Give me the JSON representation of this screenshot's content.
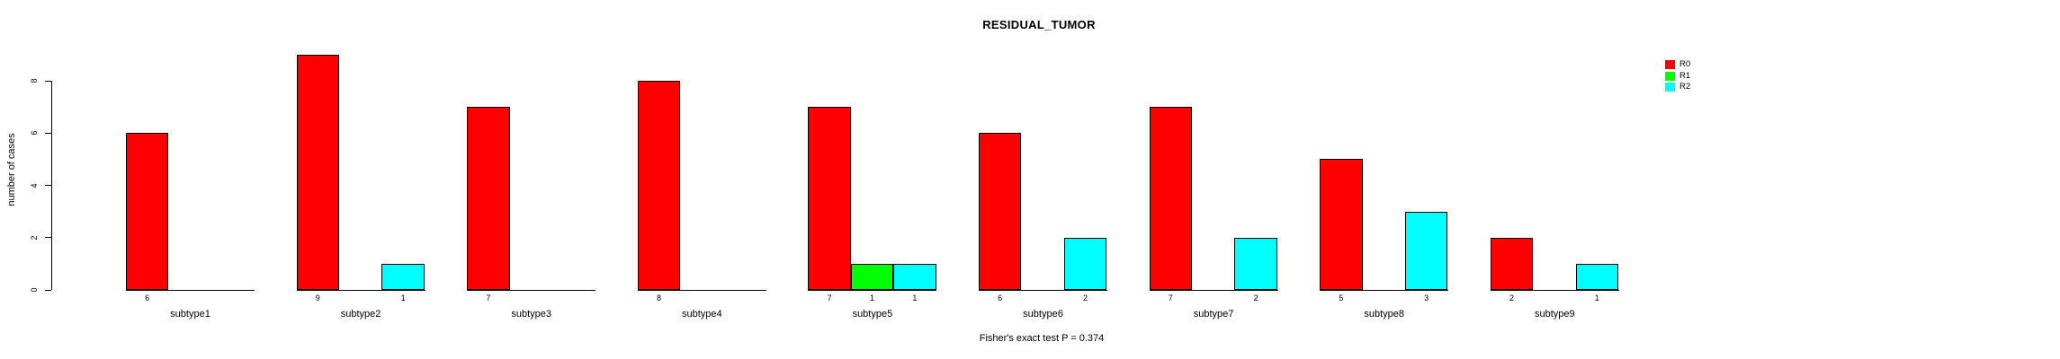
{
  "chart_data": {
    "type": "bar",
    "grouped": true,
    "title": "RESIDUAL_TUMOR",
    "xlabel": "",
    "ylabel": "number of cases",
    "annotation": "Fisher's exact test P = 0.374",
    "categories": [
      "subtype1",
      "subtype2",
      "subtype3",
      "subtype4",
      "subtype5",
      "subtype6",
      "subtype7",
      "subtype8",
      "subtype9"
    ],
    "series": [
      {
        "name": "R0",
        "color": "#ff0000",
        "values": [
          6,
          9,
          7,
          8,
          7,
          6,
          7,
          5,
          2
        ]
      },
      {
        "name": "R1",
        "color": "#00ff00",
        "values": [
          0,
          0,
          0,
          0,
          1,
          0,
          0,
          0,
          0
        ]
      },
      {
        "name": "R2",
        "color": "#00ffff",
        "values": [
          0,
          1,
          0,
          0,
          1,
          2,
          2,
          3,
          1
        ]
      }
    ],
    "bar_value_labels_shown": true,
    "yticks": [
      0,
      2,
      4,
      6,
      8
    ],
    "ylim": [
      0,
      9
    ],
    "grid": false,
    "legend_position": "top-right"
  },
  "legend": {
    "items": [
      {
        "label": "R0",
        "color": "#ff0000"
      },
      {
        "label": "R1",
        "color": "#00ff00"
      },
      {
        "label": "R2",
        "color": "#00ffff"
      }
    ]
  },
  "colors": {
    "r0": "#ff0000",
    "r1": "#00ff00",
    "r2": "#00ffff",
    "axis": "#000000",
    "background": "#ffffff"
  }
}
